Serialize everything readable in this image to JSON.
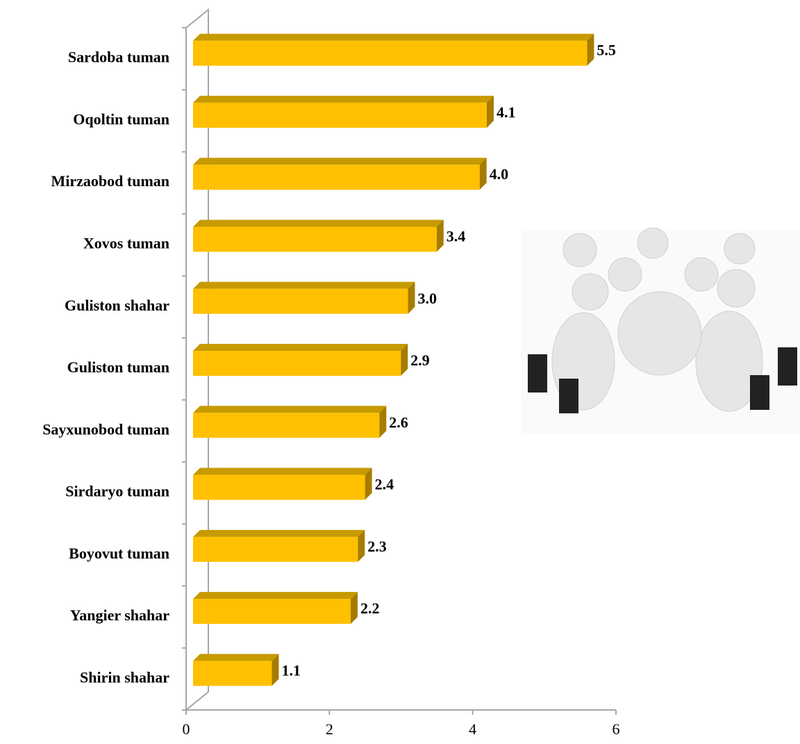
{
  "chart_data": {
    "type": "bar3d-horizontal",
    "categories": [
      "Sardoba tuman",
      "Oqoltin tuman",
      "Mirzaobod tuman",
      "Xovos tuman",
      "Guliston shahar",
      "Guliston tuman",
      "Sayxunobod tuman",
      "Sirdaryo tuman",
      "Boyovut tuman",
      "Yangier shahar",
      "Shirin shahar"
    ],
    "values": [
      5.5,
      4.1,
      4.0,
      3.4,
      3.0,
      2.9,
      2.6,
      2.4,
      2.3,
      2.2,
      1.1
    ],
    "value_labels": [
      "5.5",
      "4.1",
      "4.0",
      "3.4",
      "3.0",
      "2.9",
      "2.6",
      "2.4",
      "2.3",
      "2.2",
      "1.1"
    ],
    "color": "#ffc000",
    "xlim": [
      0,
      6
    ],
    "xticks": [
      0,
      2,
      4,
      6
    ]
  }
}
